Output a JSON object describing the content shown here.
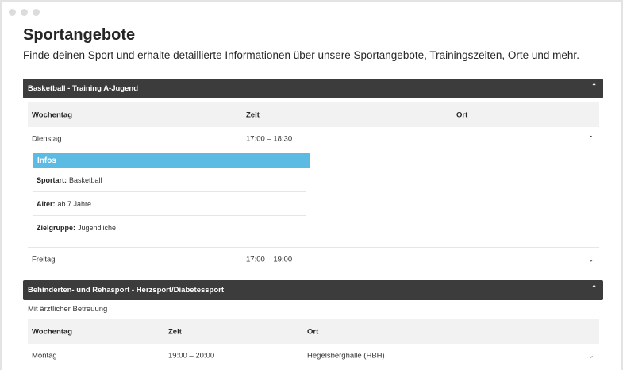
{
  "page": {
    "title": "Sportangebote",
    "subtitle": "Finde deinen Sport und erhalte detaillierte Informationen über unsere Sportangebote, Trainingszeiten, Orte und mehr."
  },
  "icons": {
    "window_dots": "window-control-dots",
    "expand": "chevron-down-icon",
    "collapse": "chevron-up-icon"
  },
  "colors": {
    "header_bg": "#3c3c3c",
    "infos_accent": "#5bbbe3",
    "table_header_bg": "#f2f2f2"
  },
  "sections": [
    {
      "title": "Basketball - Training A-Jugend",
      "columns": [
        "Wochentag",
        "Zeit",
        "Ort"
      ],
      "rows": [
        {
          "day": "Dienstag",
          "time": "17:00 – 18:30",
          "place": "",
          "expanded": true,
          "infos_label": "Infos",
          "infos": [
            {
              "label": "Sportart:",
              "value": "Basketball"
            },
            {
              "label": "Alter:",
              "value": "ab 7 Jahre"
            },
            {
              "label": "Zielgruppe:",
              "value": "Jugendliche"
            }
          ]
        },
        {
          "day": "Freitag",
          "time": "17:00 – 19:00",
          "place": "",
          "expanded": false
        }
      ]
    },
    {
      "title": "Behinderten- und Rehasport - Herzsport/Diabetessport",
      "note": "Mit ärztlicher Betreuung",
      "columns": [
        "Wochentag",
        "Zeit",
        "Ort"
      ],
      "rows": [
        {
          "day": "Montag",
          "time": "19:00 – 20:00",
          "place": "Hegelsberghalle (HBH)",
          "expanded": false
        }
      ]
    }
  ]
}
